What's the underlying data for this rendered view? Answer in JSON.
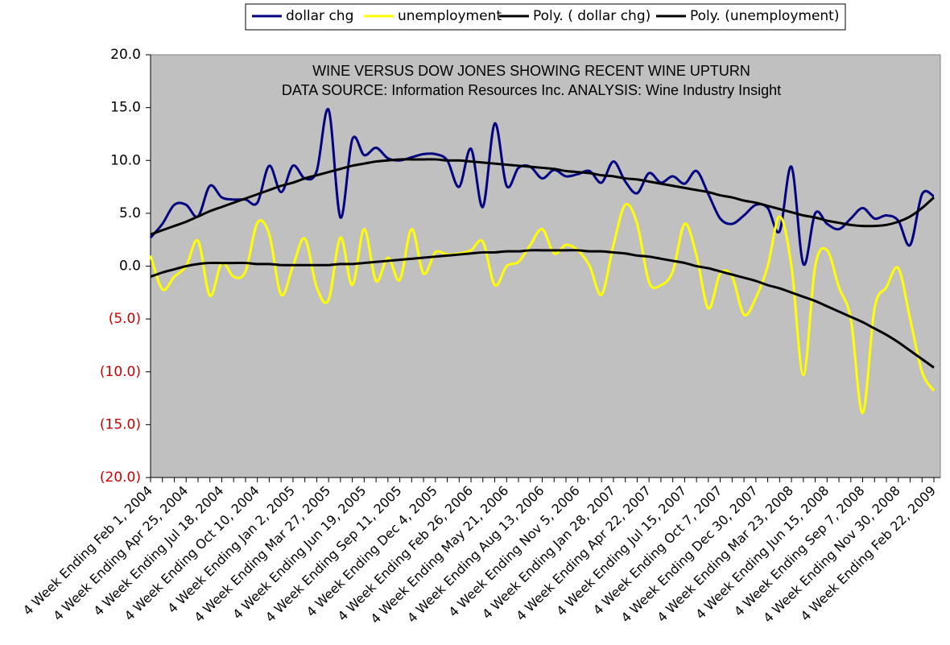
{
  "chart_data": {
    "type": "line",
    "title": "WINE VERSUS DOW JONES SHOWING RECENT WINE UPTURN",
    "subtitle": "DATA SOURCE: Information Resources Inc. ANALYSIS: Wine Industry Insight",
    "categories": [
      "4 Week Ending Feb 1, 2004",
      null,
      null,
      "4 Week Ending Apr 25, 2004",
      null,
      null,
      "4 Week Ending Jul 18, 2004",
      null,
      null,
      "4 Week Ending Oct 10, 2004",
      null,
      null,
      "4 Week Ending Jan 2, 2005",
      null,
      null,
      "4 Week Ending Mar 27, 2005",
      null,
      null,
      "4 Week Ending Jun 19, 2005",
      null,
      null,
      "4 Week Ending Sep 11, 2005",
      null,
      null,
      "4 Week Ending Dec 4, 2005",
      null,
      null,
      "4 Week Ending Feb 26, 2006",
      null,
      null,
      "4 Week Ending May 21, 2006",
      null,
      null,
      "4 Week Ending Aug 13, 2006",
      null,
      null,
      "4 Week Ending Nov 5, 2006",
      null,
      null,
      "4 Week Ending Jan 28, 2007",
      null,
      null,
      "4 Week Ending Apr 22, 2007",
      null,
      null,
      "4 Week Ending Jul 15, 2007",
      null,
      null,
      "4 Week Ending Oct 7, 2007",
      null,
      null,
      "4 Week Ending Dec 30, 2007",
      null,
      null,
      "4 Week Ending Mar 23, 2008",
      null,
      null,
      "4 Week Ending Jun 15, 2008",
      null,
      null,
      "4 Week Ending Sep 7, 2008",
      null,
      null,
      "4 Week Ending Nov 30, 2008",
      null,
      null,
      "4 Week Ending Feb 22, 2009"
    ],
    "series": [
      {
        "name": "dollar chg",
        "color": "#000080",
        "smooth": true,
        "values": [
          2.7,
          4,
          5.8,
          5.8,
          4.7,
          7.6,
          6.5,
          6.3,
          6.3,
          6,
          9.5,
          7,
          9.5,
          8.3,
          9,
          14.8,
          4.6,
          12,
          10.5,
          11.2,
          10.2,
          10,
          10.3,
          10.6,
          10.6,
          10,
          7.5,
          11.1,
          5.6,
          13.5,
          7.6,
          9.3,
          9.4,
          8.3,
          9.1,
          8.5,
          8.7,
          9,
          7.9,
          9.9,
          8,
          6.9,
          8.8,
          7.9,
          8.5,
          7.8,
          9,
          6.8,
          4.5,
          4,
          4.8,
          5.8,
          5.5,
          3.3,
          9.4,
          0.2,
          5,
          4,
          3.5,
          4.5,
          5.5,
          4.5,
          4.8,
          4.3,
          2,
          6.8,
          6.6
        ]
      },
      {
        "name": "unemployment",
        "color": "#ffff00",
        "smooth": true,
        "values": [
          1,
          -2.2,
          -1,
          0,
          2.4,
          -2.8,
          0.3,
          -1,
          -0.5,
          4.1,
          3,
          -2.7,
          0,
          2.6,
          -2,
          -3.2,
          2.7,
          -1.8,
          3.5,
          -1.4,
          0.8,
          -1.3,
          3.5,
          -0.7,
          1.3,
          1.1,
          1.2,
          1.5,
          2.3,
          -1.8,
          0,
          0.4,
          2,
          3.5,
          1.2,
          2,
          1.5,
          0,
          -2.7,
          2,
          5.8,
          4,
          -1.5,
          -1.8,
          -0.5,
          4,
          1,
          -4,
          -0.7,
          -1,
          -4.6,
          -3,
          0,
          4.7,
          0,
          -10.3,
          0,
          1.5,
          -2,
          -5,
          -13.9,
          -4,
          -2,
          -0.2,
          -5,
          -10,
          -11.8
        ]
      },
      {
        "name": "Poly. ( dollar chg)",
        "color": "#000000",
        "smooth": true,
        "values": [
          3.0,
          3.4,
          3.8,
          4.2,
          4.7,
          5.2,
          5.6,
          6.0,
          6.4,
          6.8,
          7.2,
          7.6,
          7.9,
          8.3,
          8.6,
          8.9,
          9.2,
          9.5,
          9.7,
          9.9,
          10.0,
          10.1,
          10.1,
          10.1,
          10.1,
          10.0,
          10.0,
          9.9,
          9.8,
          9.7,
          9.6,
          9.5,
          9.4,
          9.3,
          9.2,
          9.0,
          8.9,
          8.8,
          8.6,
          8.5,
          8.3,
          8.2,
          8.0,
          7.8,
          7.6,
          7.4,
          7.2,
          7.0,
          6.7,
          6.5,
          6.2,
          6.0,
          5.7,
          5.4,
          5.1,
          4.8,
          4.6,
          4.3,
          4.1,
          3.9,
          3.8,
          3.8,
          3.9,
          4.2,
          4.7,
          5.5,
          6.5
        ]
      },
      {
        "name": "Poly. (unemployment)",
        "color": "#000000",
        "smooth": true,
        "values": [
          -1.0,
          -0.6,
          -0.3,
          0.0,
          0.2,
          0.3,
          0.3,
          0.3,
          0.3,
          0.2,
          0.2,
          0.1,
          0.1,
          0.1,
          0.1,
          0.1,
          0.2,
          0.2,
          0.3,
          0.4,
          0.5,
          0.6,
          0.7,
          0.8,
          0.9,
          1.0,
          1.1,
          1.2,
          1.3,
          1.3,
          1.4,
          1.4,
          1.5,
          1.5,
          1.5,
          1.5,
          1.5,
          1.4,
          1.4,
          1.3,
          1.2,
          1.0,
          0.9,
          0.7,
          0.5,
          0.3,
          0.0,
          -0.2,
          -0.5,
          -0.8,
          -1.1,
          -1.4,
          -1.8,
          -2.1,
          -2.5,
          -2.9,
          -3.3,
          -3.8,
          -4.3,
          -4.8,
          -5.3,
          -5.9,
          -6.5,
          -7.2,
          -8.0,
          -8.8,
          -9.6
        ]
      }
    ],
    "ylim": [
      -20,
      20
    ],
    "yticks": [
      {
        "value": 20,
        "label": "20.0"
      },
      {
        "value": 15,
        "label": "15.0"
      },
      {
        "value": 10,
        "label": "10.0"
      },
      {
        "value": 5,
        "label": "5.0"
      },
      {
        "value": 0,
        "label": "0.0"
      },
      {
        "value": -5,
        "label": "(5.0)"
      },
      {
        "value": -10,
        "label": "(10.0)"
      },
      {
        "value": -15,
        "label": "(15.0)"
      },
      {
        "value": -20,
        "label": "(20.0)"
      }
    ],
    "negative_tick_color": "#cc0000",
    "plot_background": "#c0c0c0",
    "legend": "top",
    "grid": false
  }
}
